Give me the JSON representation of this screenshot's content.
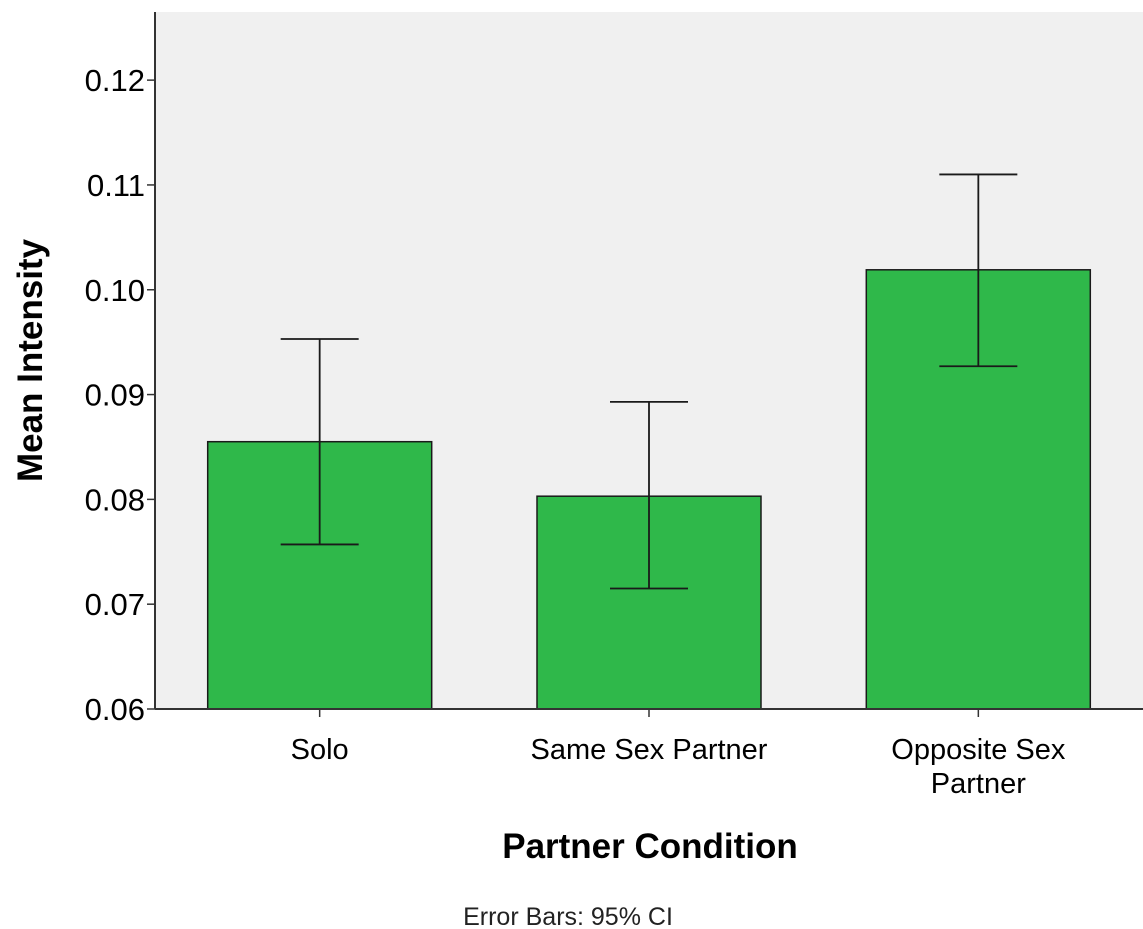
{
  "chart_data": {
    "type": "bar",
    "categories": [
      "Solo",
      "Same Sex Partner",
      "Opposite Sex Partner"
    ],
    "category_lines": [
      [
        "Solo"
      ],
      [
        "Same Sex Partner"
      ],
      [
        "Opposite Sex",
        "Partner"
      ]
    ],
    "values": [
      0.0855,
      0.0803,
      0.1019
    ],
    "error_low": [
      0.0757,
      0.0715,
      0.0927
    ],
    "error_high": [
      0.0953,
      0.0893,
      0.111
    ],
    "xlabel": "Partner Condition",
    "ylabel": "Mean Intensity",
    "ylim": [
      0.06,
      0.1265
    ],
    "yticks": [
      0.06,
      0.07,
      0.08,
      0.09,
      0.1,
      0.11,
      0.12
    ],
    "ytick_labels": [
      "0.06",
      "0.07",
      "0.08",
      "0.09",
      "0.10",
      "0.11",
      "0.12"
    ],
    "footnote": "Error Bars: 95% CI",
    "grid": false,
    "legend": "none",
    "colors": {
      "bar_fill": "#2fb84a",
      "bar_stroke": "#1a1a1a",
      "plot_background": "#f0f0f0",
      "axis": "#333333",
      "error_bar": "#1a1a1a"
    }
  }
}
